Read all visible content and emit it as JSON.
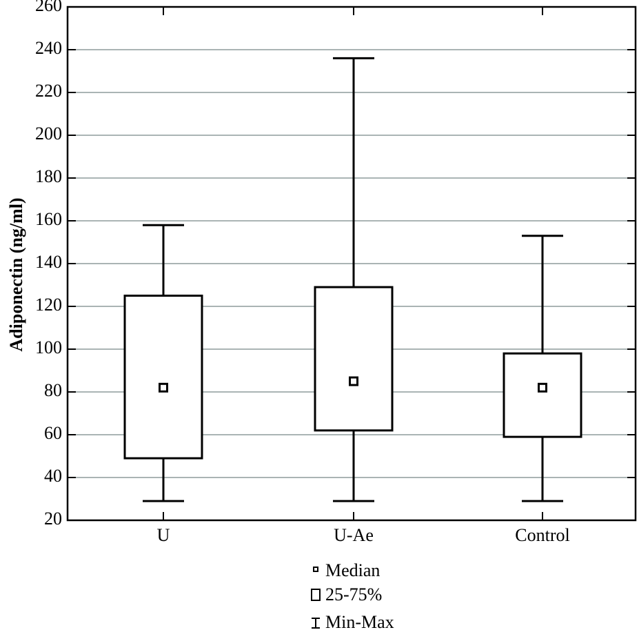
{
  "chart_data": {
    "type": "boxplot",
    "title": "",
    "xlabel": "",
    "ylabel": "Adiponectin (ng/ml)",
    "ylim": [
      20,
      260
    ],
    "yticks": [
      20,
      40,
      60,
      80,
      100,
      120,
      140,
      160,
      180,
      200,
      220,
      240,
      260
    ],
    "grid": true,
    "categories": [
      "U",
      "U-Ae",
      "Control"
    ],
    "series": [
      {
        "category": "U",
        "min": 29,
        "q1": 49,
        "median": 82,
        "q3": 125,
        "max": 158
      },
      {
        "category": "U-Ae",
        "min": 29,
        "q1": 62,
        "median": 85,
        "q3": 129,
        "max": 236
      },
      {
        "category": "Control",
        "min": 29,
        "q1": 59,
        "median": 82,
        "q3": 98,
        "max": 153
      }
    ],
    "legend": {
      "placement": "bottom",
      "entries": [
        {
          "symbol": "median-square",
          "label": "Median"
        },
        {
          "symbol": "box",
          "label": "25-75%"
        },
        {
          "symbol": "whisker",
          "label": "Min-Max"
        }
      ]
    }
  }
}
